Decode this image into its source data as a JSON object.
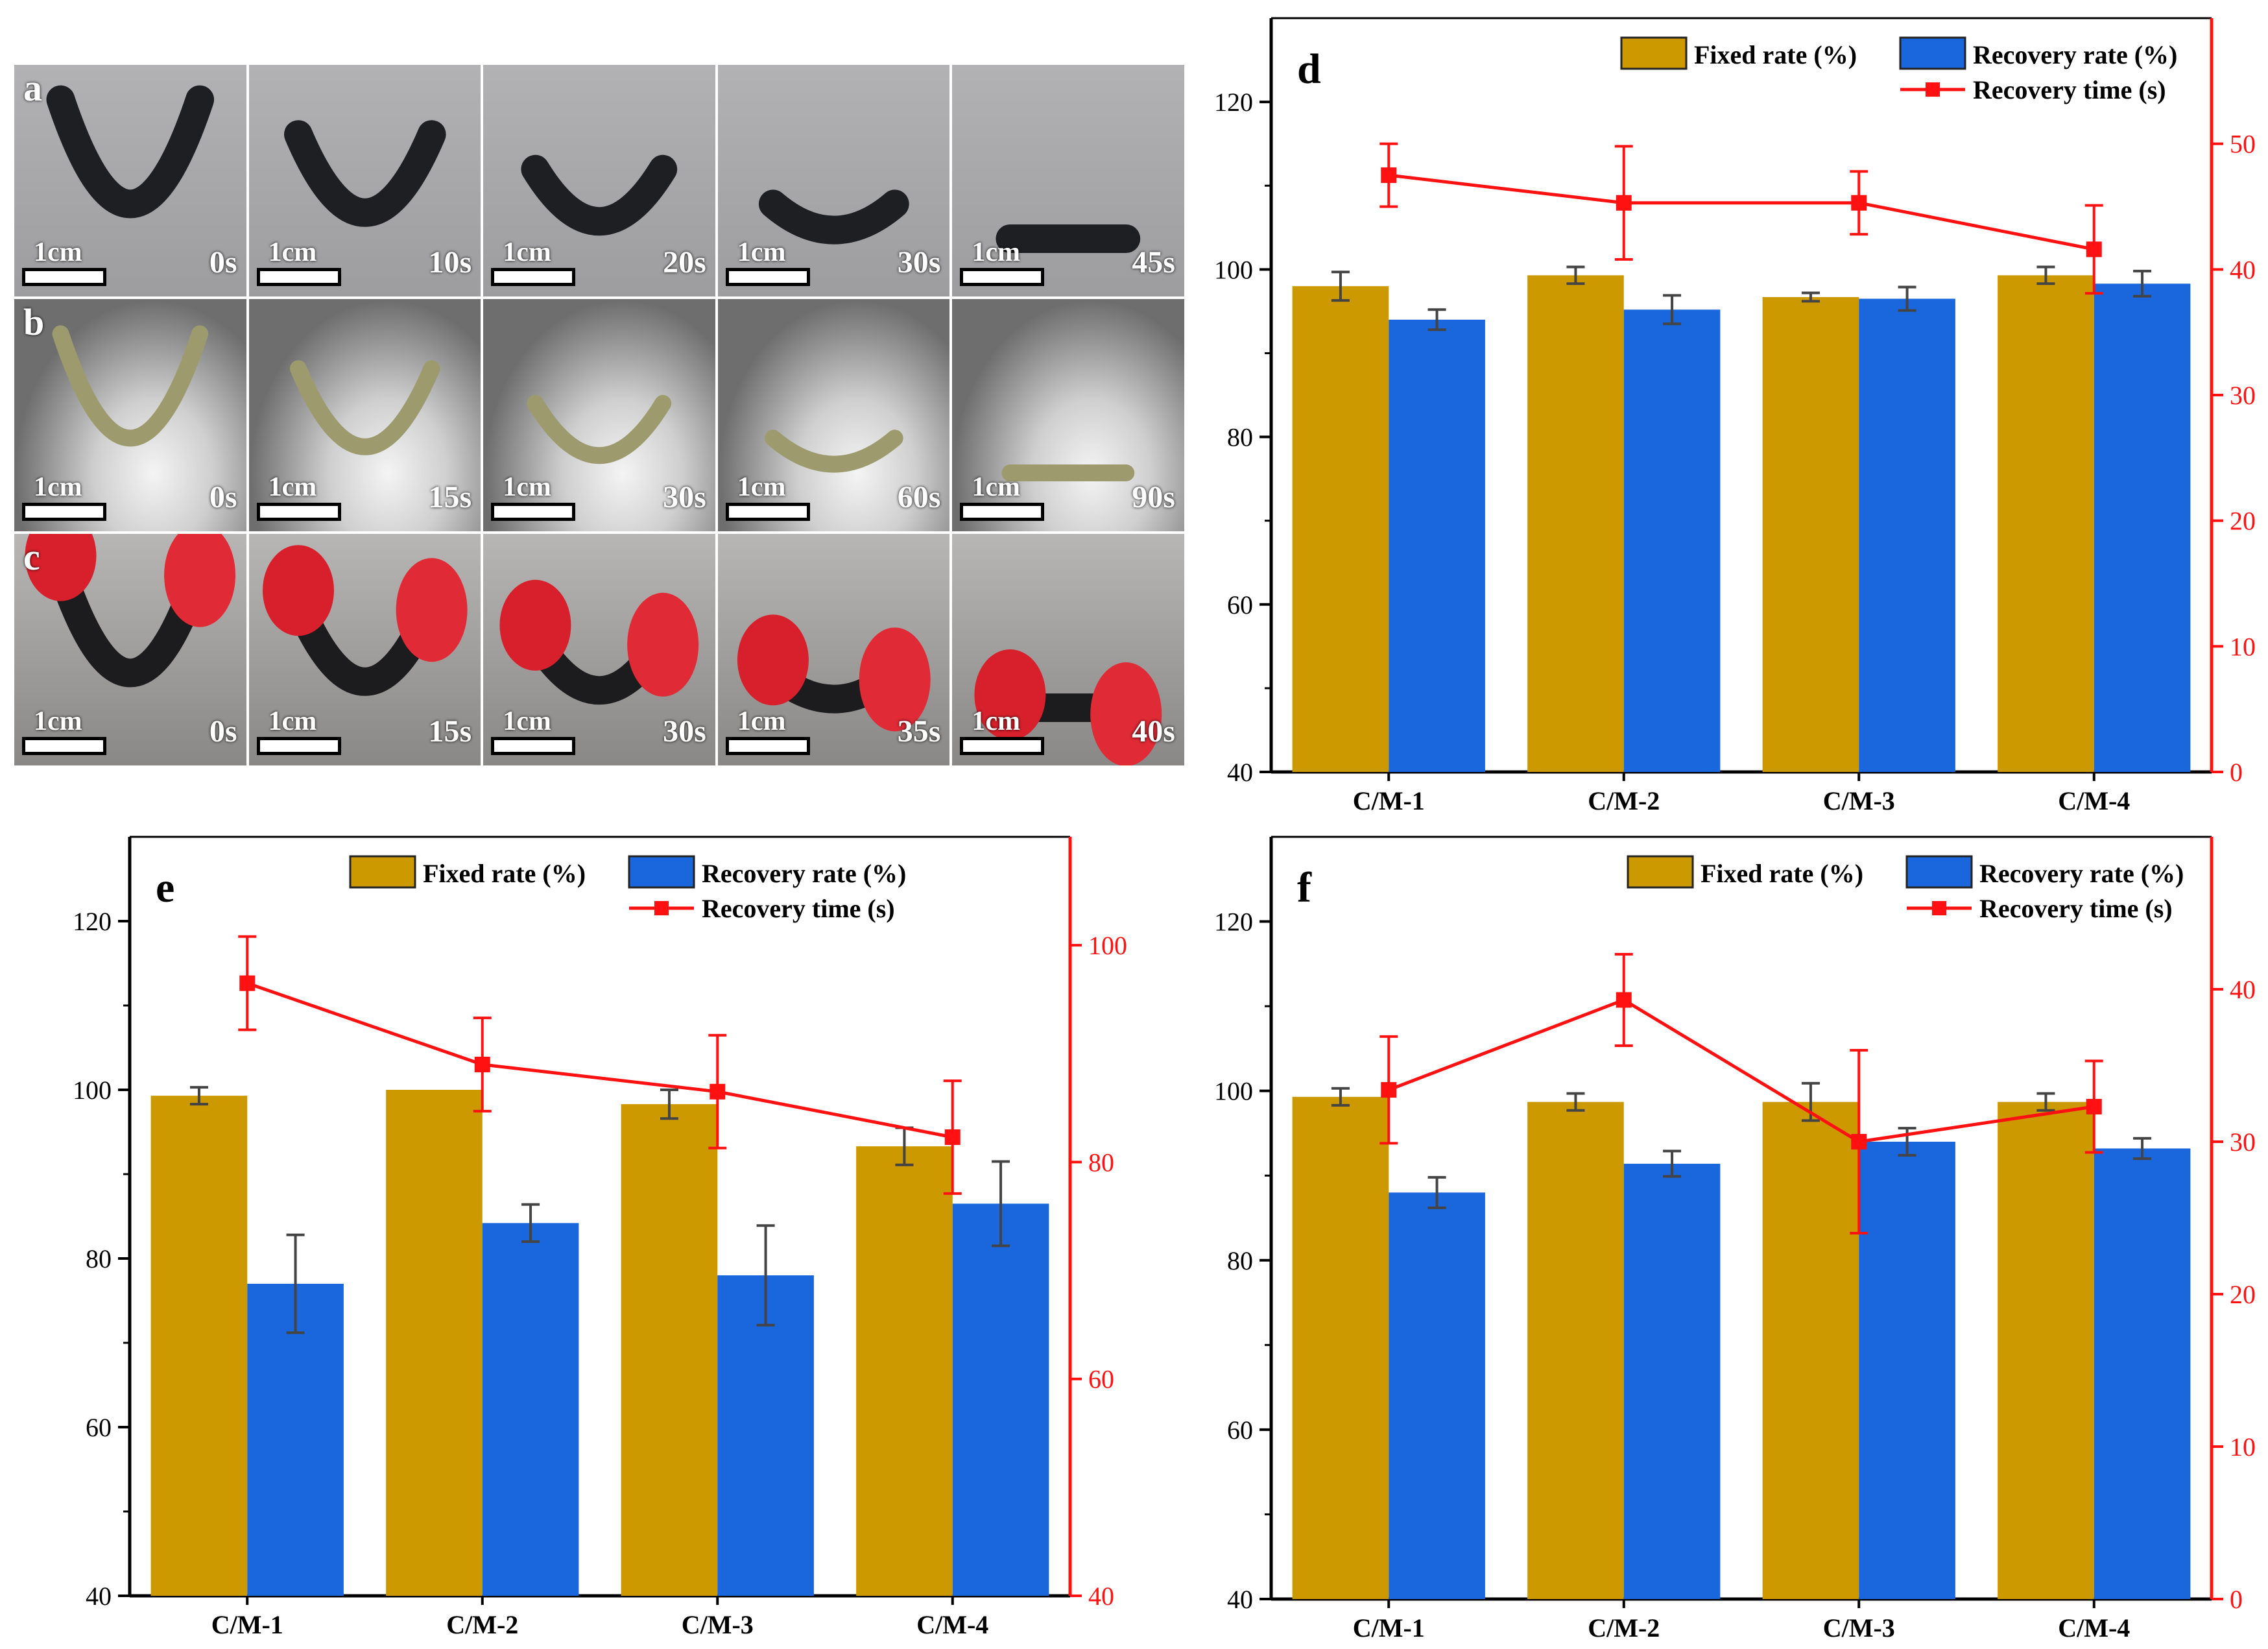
{
  "photo_panels": {
    "rows": [
      {
        "label": "a",
        "scale_label": "1cm",
        "times": [
          "0s",
          "10s",
          "20s",
          "30s",
          "45s"
        ],
        "bg": "#a9a9ab",
        "sample": "#1e1f22"
      },
      {
        "label": "b",
        "scale_label": "1cm",
        "times": [
          "0s",
          "15s",
          "30s",
          "60s",
          "90s"
        ],
        "bg": "#8f8f8f",
        "sample": "#9d9b6e"
      },
      {
        "label": "c",
        "scale_label": "1cm",
        "times": [
          "0s",
          "15s",
          "30s",
          "35s",
          "40s"
        ],
        "bg": "#a6a4a2",
        "sample": "#1c1c1e"
      }
    ]
  },
  "colors": {
    "fixed": "#cc9900",
    "recovery": "#1a66dd",
    "time": "#ff1111",
    "axis": "#000000"
  },
  "chart_data": [
    {
      "panel": "d",
      "type": "bar",
      "categories": [
        "C/M-1",
        "C/M-2",
        "C/M-3",
        "C/M-4"
      ],
      "series": [
        {
          "name": "Fixed rate (%)",
          "axis": "left",
          "values": [
            98,
            99.3,
            96.7,
            99.3
          ],
          "errors": [
            1.7,
            1.0,
            0.5,
            1.0
          ]
        },
        {
          "name": "Recovery rate (%)",
          "axis": "left",
          "values": [
            94,
            95.2,
            96.5,
            98.3
          ],
          "errors": [
            1.2,
            1.7,
            1.4,
            1.5
          ]
        },
        {
          "name": "Recovery time (s)",
          "type": "line",
          "axis": "right",
          "values": [
            47.5,
            45.3,
            45.3,
            41.6
          ],
          "errors": [
            2.5,
            4.5,
            2.5,
            3.5
          ]
        }
      ],
      "ylim": [
        40,
        130
      ],
      "yticks": [
        40,
        60,
        80,
        100,
        120
      ],
      "y2lim": [
        0,
        60
      ],
      "y2ticks": [
        0,
        10,
        20,
        30,
        40,
        50
      ],
      "legend": [
        "Fixed rate (%)",
        "Recovery rate (%)",
        "Recovery time (s)"
      ]
    },
    {
      "panel": "e",
      "type": "bar",
      "categories": [
        "C/M-1",
        "C/M-2",
        "C/M-3",
        "C/M-4"
      ],
      "series": [
        {
          "name": "Fixed rate (%)",
          "axis": "left",
          "values": [
            99.3,
            100,
            98.3,
            93.3
          ],
          "errors": [
            1.0,
            0,
            1.7,
            2.2
          ]
        },
        {
          "name": "Recovery rate (%)",
          "axis": "left",
          "values": [
            77,
            84.2,
            78,
            86.5
          ],
          "errors": [
            5.8,
            2.2,
            5.9,
            5.0
          ]
        },
        {
          "name": "Recovery time (s)",
          "type": "line",
          "axis": "right",
          "values": [
            96.5,
            89,
            86.5,
            82.3
          ],
          "errors": [
            4.3,
            4.3,
            5.2,
            5.2
          ]
        }
      ],
      "ylim": [
        40,
        130
      ],
      "yticks": [
        40,
        60,
        80,
        100,
        120
      ],
      "y2lim": [
        40,
        110
      ],
      "y2ticks": [
        40,
        60,
        80,
        100
      ],
      "legend": [
        "Fixed rate (%)",
        "Recovery rate (%)",
        "Recovery time (s)"
      ]
    },
    {
      "panel": "f",
      "type": "bar",
      "categories": [
        "C/M-1",
        "C/M-2",
        "C/M-3",
        "C/M-4"
      ],
      "series": [
        {
          "name": "Fixed rate (%)",
          "axis": "left",
          "values": [
            99.3,
            98.7,
            98.7,
            98.7
          ],
          "errors": [
            1.0,
            1.0,
            2.2,
            1.0
          ]
        },
        {
          "name": "Recovery rate (%)",
          "axis": "left",
          "values": [
            88,
            91.4,
            94,
            93.2
          ],
          "errors": [
            1.8,
            1.5,
            1.6,
            1.2
          ]
        },
        {
          "name": "Recovery time (s)",
          "type": "line",
          "axis": "right",
          "values": [
            33.4,
            39.3,
            30,
            32.3
          ],
          "errors": [
            3.5,
            3.0,
            6.0,
            3.0
          ]
        }
      ],
      "ylim": [
        40,
        130
      ],
      "yticks": [
        40,
        60,
        80,
        100,
        120
      ],
      "y2lim": [
        0,
        50
      ],
      "y2ticks": [
        0,
        10,
        20,
        30,
        40
      ],
      "legend": [
        "Fixed rate (%)",
        "Recovery rate (%)",
        "Recovery time (s)"
      ]
    }
  ]
}
